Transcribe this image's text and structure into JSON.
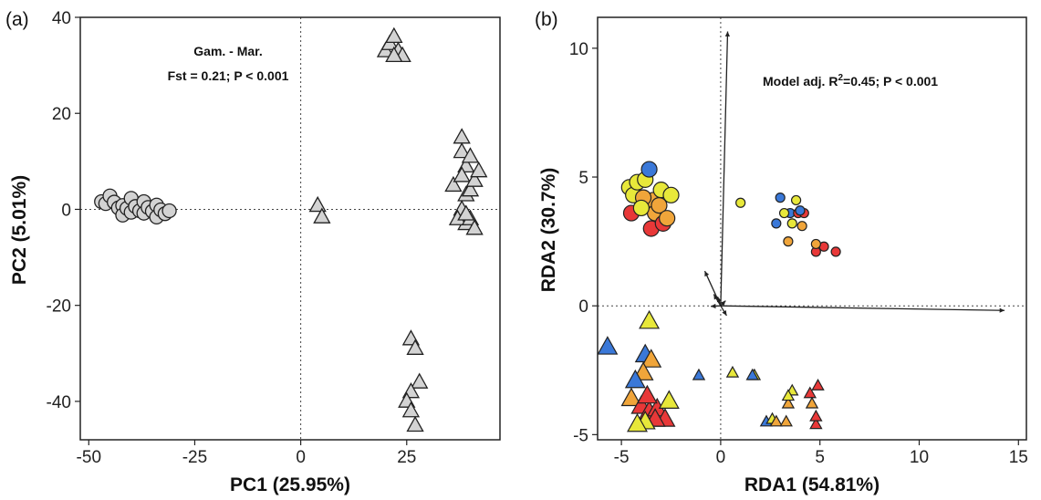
{
  "chart_data": [
    {
      "type": "scatter",
      "panel_label": "(a)",
      "xlabel": "PC1 (25.95%)",
      "ylabel": "PC2 (5.01%)",
      "xlim": [
        -52,
        47
      ],
      "ylim": [
        -48,
        40
      ],
      "xticks": [
        -50,
        -25,
        0,
        25
      ],
      "xtick_labels": [
        "-50",
        "-25",
        "0",
        "25"
      ],
      "yticks": [
        -40,
        -20,
        0,
        20,
        40
      ],
      "ytick_labels": [
        "-40",
        "-20",
        "0",
        "20",
        "40"
      ],
      "grid": false,
      "reference_lines": {
        "x": 0,
        "y": 0,
        "style": "dotted"
      },
      "annotation": {
        "line1": "Gam. - Mar.",
        "line2": "Fst = 0.21; P < 0.001",
        "position": "top-center"
      },
      "series": [
        {
          "marker": "circle",
          "color": "#d3d3d3",
          "points": [
            [
              -47,
              1.6
            ],
            [
              -46,
              1.2
            ],
            [
              -45,
              2.8
            ],
            [
              -44,
              1.5
            ],
            [
              -43,
              0.3
            ],
            [
              -42,
              0.8
            ],
            [
              -42,
              -1.2
            ],
            [
              -41,
              0.2
            ],
            [
              -40,
              2.3
            ],
            [
              -40,
              -0.6
            ],
            [
              -39,
              0.6
            ],
            [
              -38,
              -0.3
            ],
            [
              -37,
              1.6
            ],
            [
              -37,
              -0.8
            ],
            [
              -36,
              0.4
            ],
            [
              -35,
              -0.4
            ],
            [
              -34,
              0.9
            ],
            [
              -34,
              -1.6
            ],
            [
              -33,
              -0.1
            ],
            [
              -32,
              -0.9
            ],
            [
              -31,
              -0.3
            ]
          ]
        },
        {
          "marker": "triangle",
          "color": "#d3d3d3",
          "points": [
            [
              4,
              0.8
            ],
            [
              5,
              -1.6
            ],
            [
              20,
              33
            ],
            [
              21,
              34.5
            ],
            [
              22,
              36
            ],
            [
              23,
              33
            ],
            [
              24,
              32
            ],
            [
              22,
              32
            ],
            [
              26,
              -27
            ],
            [
              27,
              -29
            ],
            [
              28,
              -36
            ],
            [
              26,
              -38
            ],
            [
              25,
              -40
            ],
            [
              26,
              -42
            ],
            [
              27,
              -45
            ],
            [
              36,
              5
            ],
            [
              38,
              15
            ],
            [
              38,
              12
            ],
            [
              39,
              9
            ],
            [
              38,
              7
            ],
            [
              39,
              3
            ],
            [
              38,
              0
            ],
            [
              39,
              -3
            ],
            [
              37,
              -2
            ],
            [
              40,
              11
            ],
            [
              40,
              4
            ],
            [
              41,
              6
            ],
            [
              40,
              -2
            ],
            [
              42,
              8
            ],
            [
              41,
              -4
            ],
            [
              39,
              -1
            ]
          ]
        }
      ]
    },
    {
      "type": "scatter",
      "panel_label": "(b)",
      "xlabel": "RDA1 (54.81%)",
      "ylabel": "RDA2 (30.7%)",
      "xlim": [
        -6.2,
        15.4
      ],
      "ylim": [
        -5.2,
        11.2
      ],
      "xticks": [
        -5,
        0,
        5,
        10,
        15
      ],
      "xtick_labels": [
        "-5",
        "0",
        "5",
        "10",
        "15"
      ],
      "yticks": [
        -5,
        0,
        5,
        10
      ],
      "ytick_labels": [
        "-5",
        "0",
        "5",
        "10"
      ],
      "grid": false,
      "reference_lines": {
        "x": 0,
        "y": 0,
        "style": "dotted"
      },
      "annotation": {
        "text": "Model adj. R",
        "superscript": "2",
        "suffix": "=0.45; P < 0.001",
        "position": "top-right"
      },
      "vectors": [
        [
          0.35,
          10.65
        ],
        [
          14.3,
          -0.18
        ],
        [
          -0.8,
          1.35
        ],
        [
          -0.35,
          0.45
        ],
        [
          -0.15,
          0.35
        ],
        [
          0.25,
          0.2
        ],
        [
          -0.5,
          -0.02
        ],
        [
          0.3,
          -0.38
        ]
      ],
      "series": [
        {
          "marker": "circle",
          "size": "large",
          "points": [
            [
              -4.6,
              4.6,
              "#e8e83a"
            ],
            [
              -4.4,
              4.3,
              "#e8e83a"
            ],
            [
              -4.2,
              4.8,
              "#e8e83a"
            ],
            [
              -3.8,
              4.9,
              "#e8e83a"
            ],
            [
              -3.6,
              5.3,
              "#3a78d8"
            ],
            [
              -3.4,
              4.1,
              "#f0a53a"
            ],
            [
              -3.3,
              3.6,
              "#f0a53a"
            ],
            [
              -3.1,
              3.9,
              "#f0a53a"
            ],
            [
              -3.0,
              4.5,
              "#e8e83a"
            ],
            [
              -2.5,
              4.3,
              "#e8e83a"
            ],
            [
              -4.5,
              3.6,
              "#e83838"
            ],
            [
              -3.5,
              3.0,
              "#e83838"
            ],
            [
              -2.9,
              3.2,
              "#e83838"
            ],
            [
              -2.7,
              3.4,
              "#f0a53a"
            ],
            [
              -3.9,
              4.2,
              "#f0a53a"
            ],
            [
              -4.0,
              3.8,
              "#e8e83a"
            ]
          ]
        },
        {
          "marker": "circle",
          "size": "small",
          "points": [
            [
              1.0,
              4.0,
              "#e8e83a"
            ],
            [
              3.0,
              4.2,
              "#3a78d8"
            ],
            [
              2.8,
              3.2,
              "#3a78d8"
            ],
            [
              3.5,
              3.6,
              "#3a78d8"
            ],
            [
              3.2,
              3.6,
              "#e8e83a"
            ],
            [
              3.8,
              4.1,
              "#e8e83a"
            ],
            [
              3.6,
              3.2,
              "#e8e83a"
            ],
            [
              4.1,
              3.1,
              "#f0a53a"
            ],
            [
              3.9,
              3.6,
              "#e83838"
            ],
            [
              4.2,
              3.6,
              "#e83838"
            ],
            [
              3.4,
              2.5,
              "#f0a53a"
            ],
            [
              4.8,
              2.1,
              "#e83838"
            ],
            [
              5.2,
              2.3,
              "#e83838"
            ],
            [
              4.8,
              2.4,
              "#f0a53a"
            ],
            [
              5.8,
              2.1,
              "#e83838"
            ],
            [
              4.0,
              3.7,
              "#3a78d8"
            ]
          ]
        },
        {
          "marker": "triangle",
          "size": "large",
          "points": [
            [
              -5.7,
              -1.6,
              "#3a78d8"
            ],
            [
              -3.6,
              -0.6,
              "#e8e83a"
            ],
            [
              -3.8,
              -1.9,
              "#3a78d8"
            ],
            [
              -3.5,
              -2.1,
              "#f0a53a"
            ],
            [
              -3.9,
              -2.6,
              "#f0a53a"
            ],
            [
              -4.3,
              -2.9,
              "#3a78d8"
            ],
            [
              -4.5,
              -3.6,
              "#f0a53a"
            ],
            [
              -4.0,
              -3.9,
              "#e83838"
            ],
            [
              -3.6,
              -4.1,
              "#e83838"
            ],
            [
              -3.2,
              -4.0,
              "#e83838"
            ],
            [
              -2.6,
              -3.7,
              "#e8e83a"
            ],
            [
              -2.8,
              -4.4,
              "#e83838"
            ],
            [
              -3.3,
              -4.4,
              "#e83838"
            ],
            [
              -3.8,
              -4.5,
              "#e8e83a"
            ],
            [
              -4.2,
              -4.6,
              "#e8e83a"
            ],
            [
              -3.7,
              -3.5,
              "#e83838"
            ]
          ]
        },
        {
          "marker": "triangle",
          "size": "small",
          "points": [
            [
              -1.1,
              -2.7,
              "#3a78d8"
            ],
            [
              0.6,
              -2.6,
              "#e8e83a"
            ],
            [
              1.7,
              -2.7,
              "#e8e83a"
            ],
            [
              1.6,
              -2.7,
              "#3a78d8"
            ],
            [
              2.3,
              -4.5,
              "#3a78d8"
            ],
            [
              2.6,
              -4.4,
              "#e8e83a"
            ],
            [
              2.8,
              -4.5,
              "#f0a53a"
            ],
            [
              3.3,
              -4.5,
              "#f0a53a"
            ],
            [
              3.4,
              -3.8,
              "#f0a53a"
            ],
            [
              3.6,
              -3.3,
              "#e8e83a"
            ],
            [
              3.4,
              -3.5,
              "#e8e83a"
            ],
            [
              4.5,
              -3.4,
              "#e83838"
            ],
            [
              4.6,
              -3.8,
              "#f0a53a"
            ],
            [
              4.9,
              -3.1,
              "#e83838"
            ],
            [
              4.8,
              -4.6,
              "#e83838"
            ],
            [
              4.8,
              -4.3,
              "#e83838"
            ]
          ]
        }
      ]
    }
  ]
}
